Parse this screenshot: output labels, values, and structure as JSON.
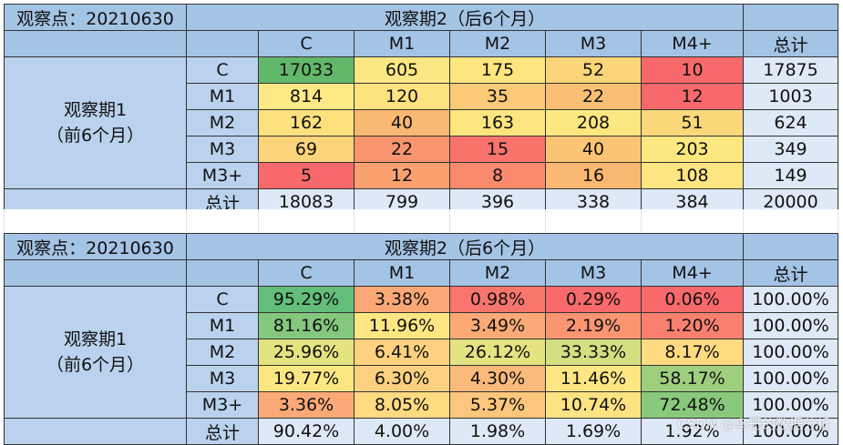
{
  "tables": [
    {
      "observation_point": "观察点：20210630",
      "period2_label": "观察期2（后6个月）",
      "period1_label": [
        "观察期1",
        "（前6个月）"
      ],
      "columns": [
        "C",
        "M1",
        "M2",
        "M3",
        "M4+",
        "总计"
      ],
      "rows": [
        {
          "label": "C",
          "cells": [
            {
              "v": "17033",
              "c": "#62b86a"
            },
            {
              "v": "605",
              "c": "#fbe783"
            },
            {
              "v": "175",
              "c": "#fde580"
            },
            {
              "v": "52",
              "c": "#fbd57a"
            },
            {
              "v": "10",
              "c": "#f8696b"
            }
          ],
          "total": "17875"
        },
        {
          "label": "M1",
          "cells": [
            {
              "v": "814",
              "c": "#fde985"
            },
            {
              "v": "120",
              "c": "#fde280"
            },
            {
              "v": "35",
              "c": "#fbca76"
            },
            {
              "v": "22",
              "c": "#fbbf73"
            },
            {
              "v": "12",
              "c": "#f8696b"
            }
          ],
          "total": "1003"
        },
        {
          "label": "M2",
          "cells": [
            {
              "v": "162",
              "c": "#fde17f"
            },
            {
              "v": "40",
              "c": "#fbb872"
            },
            {
              "v": "163",
              "c": "#fde57f"
            },
            {
              "v": "208",
              "c": "#fde780"
            },
            {
              "v": "51",
              "c": "#fbd97b"
            }
          ],
          "total": "624"
        },
        {
          "label": "M3",
          "cells": [
            {
              "v": "69",
              "c": "#fdd47a"
            },
            {
              "v": "22",
              "c": "#f8956e"
            },
            {
              "v": "15",
              "c": "#f8736c"
            },
            {
              "v": "40",
              "c": "#fbc475"
            },
            {
              "v": "203",
              "c": "#fde780"
            }
          ],
          "total": "349"
        },
        {
          "label": "M3+",
          "cells": [
            {
              "v": "5",
              "c": "#f8696b"
            },
            {
              "v": "12",
              "c": "#fba170"
            },
            {
              "v": "8",
              "c": "#f98a6e"
            },
            {
              "v": "16",
              "c": "#fbb872"
            },
            {
              "v": "108",
              "c": "#fde581"
            }
          ],
          "total": "149"
        }
      ],
      "total_row": {
        "label": "总计",
        "values": [
          "18083",
          "799",
          "396",
          "338",
          "384",
          "20000"
        ]
      }
    },
    {
      "observation_point": "观察点：20210630",
      "period2_label": "观察期2（后6个月）",
      "period1_label": [
        "观察期1",
        "（前6个月）"
      ],
      "columns": [
        "C",
        "M1",
        "M2",
        "M3",
        "M4+",
        "总计"
      ],
      "rows": [
        {
          "label": "C",
          "cells": [
            {
              "v": "95.29%",
              "c": "#63be7b"
            },
            {
              "v": "3.38%",
              "c": "#fba876"
            },
            {
              "v": "0.98%",
              "c": "#f8756d"
            },
            {
              "v": "0.29%",
              "c": "#f86a6b"
            },
            {
              "v": "0.06%",
              "c": "#f8696b"
            }
          ],
          "total": "100.00%"
        },
        {
          "label": "M1",
          "cells": [
            {
              "v": "81.16%",
              "c": "#84c77d"
            },
            {
              "v": "11.96%",
              "c": "#fee783"
            },
            {
              "v": "3.49%",
              "c": "#fbaa77"
            },
            {
              "v": "2.19%",
              "c": "#fa9572"
            },
            {
              "v": "1.20%",
              "c": "#f9806f"
            }
          ],
          "total": "100.00%"
        },
        {
          "label": "M2",
          "cells": [
            {
              "v": "25.96%",
              "c": "#e4e382"
            },
            {
              "v": "6.41%",
              "c": "#fdd17f"
            },
            {
              "v": "26.12%",
              "c": "#e3e382"
            },
            {
              "v": "33.33%",
              "c": "#d3df81"
            },
            {
              "v": "8.17%",
              "c": "#fedb81"
            }
          ],
          "total": "100.00%"
        },
        {
          "label": "M3",
          "cells": [
            {
              "v": "19.77%",
              "c": "#fce682"
            },
            {
              "v": "6.30%",
              "c": "#fdd07f"
            },
            {
              "v": "4.30%",
              "c": "#fbb97a"
            },
            {
              "v": "11.46%",
              "c": "#fee683"
            },
            {
              "v": "58.17%",
              "c": "#9fcf7e"
            }
          ],
          "total": "100.00%"
        },
        {
          "label": "M3+",
          "cells": [
            {
              "v": "3.36%",
              "c": "#fba977"
            },
            {
              "v": "8.05%",
              "c": "#feda81"
            },
            {
              "v": "5.37%",
              "c": "#fcc67c"
            },
            {
              "v": "10.74%",
              "c": "#fee383"
            },
            {
              "v": "72.48%",
              "c": "#8ac97d"
            }
          ],
          "total": "100.00%"
        }
      ],
      "total_row": {
        "label": "总计",
        "values": [
          "90.42%",
          "4.00%",
          "1.98%",
          "1.69%",
          "1.92%",
          "100.00%"
        ]
      }
    }
  ],
  "watermark": "CSDN @鸟哥的数据分析"
}
